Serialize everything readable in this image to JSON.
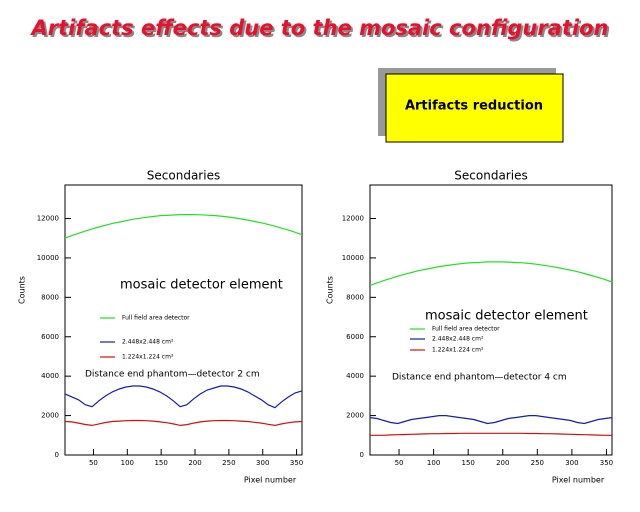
{
  "title": "Artifacts effects due to the mosaic configuration",
  "callout": "Artifacts reduction",
  "chart_data": [
    {
      "type": "line",
      "title": "Secondaries",
      "x_label": "Pixel number",
      "y_label": "Counts",
      "annotations": [
        "mosaic detector element",
        "Distance end phantom—detector 2 cm"
      ],
      "xlim": [
        8,
        358
      ],
      "xticks": [
        50,
        100,
        150,
        200,
        250,
        300,
        350
      ],
      "ylim": [
        0,
        13700
      ],
      "yticks": [
        0,
        2000,
        4000,
        6000,
        8000,
        10000,
        12000
      ],
      "x": [
        8,
        18,
        28,
        38,
        48,
        58,
        68,
        78,
        88,
        98,
        108,
        118,
        128,
        138,
        148,
        158,
        168,
        178,
        188,
        198,
        208,
        218,
        228,
        238,
        248,
        258,
        268,
        278,
        288,
        298,
        308,
        318,
        328,
        338,
        348,
        358
      ],
      "series": [
        {
          "name": "Full field area detector",
          "color": "#22e022",
          "values": [
            11000,
            11130,
            11250,
            11360,
            11470,
            11570,
            11660,
            11750,
            11820,
            11890,
            11960,
            12010,
            12060,
            12100,
            12140,
            12160,
            12180,
            12200,
            12200,
            12200,
            12190,
            12170,
            12150,
            12120,
            12080,
            12030,
            11980,
            11920,
            11850,
            11780,
            11700,
            11610,
            11510,
            11410,
            11300,
            11180
          ]
        },
        {
          "name": "2.448x2.448 cm²",
          "color": "#1020b0",
          "values": [
            3100,
            2950,
            2800,
            2550,
            2450,
            2750,
            3000,
            3200,
            3350,
            3450,
            3500,
            3500,
            3450,
            3350,
            3200,
            3000,
            2750,
            2450,
            2550,
            2850,
            3100,
            3300,
            3400,
            3500,
            3500,
            3450,
            3350,
            3200,
            3000,
            2800,
            2550,
            2400,
            2700,
            2950,
            3150,
            3250
          ]
        },
        {
          "name": "1.224x1.224 cm²",
          "color": "#d01010",
          "values": [
            1700,
            1680,
            1620,
            1550,
            1500,
            1580,
            1650,
            1700,
            1720,
            1740,
            1750,
            1750,
            1740,
            1720,
            1680,
            1640,
            1580,
            1500,
            1540,
            1620,
            1680,
            1720,
            1740,
            1750,
            1750,
            1740,
            1720,
            1700,
            1660,
            1620,
            1560,
            1500,
            1580,
            1640,
            1680,
            1700
          ]
        }
      ]
    },
    {
      "type": "line",
      "title": "Secondaries",
      "x_label": "Pixel number",
      "y_label": "Counts",
      "annotations": [
        "mosaic detector element",
        "Distance end phantom—detector 4 cm"
      ],
      "xlim": [
        8,
        358
      ],
      "xticks": [
        50,
        100,
        150,
        200,
        250,
        300,
        350
      ],
      "ylim": [
        0,
        13700
      ],
      "yticks": [
        0,
        2000,
        4000,
        6000,
        8000,
        10000,
        12000
      ],
      "x": [
        8,
        18,
        28,
        38,
        48,
        58,
        68,
        78,
        88,
        98,
        108,
        118,
        128,
        138,
        148,
        158,
        168,
        178,
        188,
        198,
        208,
        218,
        228,
        238,
        248,
        258,
        268,
        278,
        288,
        298,
        308,
        318,
        328,
        338,
        348,
        358
      ],
      "series": [
        {
          "name": "Full field area detector",
          "color": "#22e022",
          "values": [
            8600,
            8730,
            8850,
            8960,
            9070,
            9170,
            9260,
            9350,
            9420,
            9490,
            9560,
            9610,
            9660,
            9700,
            9740,
            9760,
            9780,
            9800,
            9800,
            9800,
            9790,
            9770,
            9750,
            9720,
            9680,
            9630,
            9580,
            9520,
            9450,
            9380,
            9300,
            9210,
            9110,
            9010,
            8900,
            8780
          ]
        },
        {
          "name": "2.448x2.448 cm²",
          "color": "#1020b0",
          "values": [
            1900,
            1850,
            1750,
            1650,
            1600,
            1700,
            1800,
            1850,
            1900,
            1950,
            2000,
            2000,
            1950,
            1900,
            1850,
            1800,
            1700,
            1600,
            1650,
            1750,
            1850,
            1900,
            1950,
            2000,
            2000,
            1950,
            1900,
            1850,
            1800,
            1750,
            1650,
            1600,
            1700,
            1800,
            1850,
            1900
          ]
        },
        {
          "name": "1.224x1.224 cm²",
          "color": "#d01010",
          "values": [
            1000,
            1000,
            1000,
            1020,
            1030,
            1040,
            1050,
            1060,
            1070,
            1080,
            1080,
            1090,
            1090,
            1100,
            1100,
            1100,
            1100,
            1100,
            1100,
            1100,
            1100,
            1100,
            1100,
            1090,
            1090,
            1080,
            1080,
            1070,
            1060,
            1050,
            1040,
            1030,
            1020,
            1010,
            1000,
            1000
          ]
        }
      ]
    }
  ]
}
